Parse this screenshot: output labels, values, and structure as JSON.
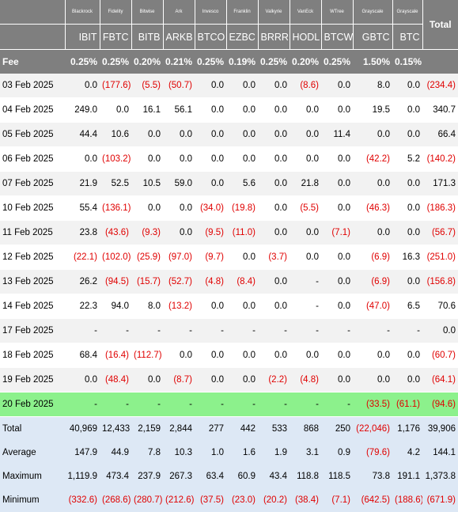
{
  "header": {
    "issuers": [
      "Blackrock",
      "Fidelity",
      "Bitwise",
      "Ark",
      "Invesco",
      "Franklin",
      "Valkyrie",
      "VanEck",
      "WTree",
      "Grayscale",
      "Grayscale"
    ],
    "tickers": [
      "IBIT",
      "FBTC",
      "BITB",
      "ARKB",
      "BTCO",
      "EZBC",
      "BRRR",
      "HODL",
      "BTCW",
      "GBTC",
      "BTC"
    ],
    "total_label": "Total",
    "fee_label": "Fee",
    "fees": [
      "0.25%",
      "0.25%",
      "0.20%",
      "0.21%",
      "0.25%",
      "0.19%",
      "0.25%",
      "0.20%",
      "0.25%",
      "1.50%",
      "0.15%"
    ]
  },
  "rows": [
    {
      "date": "03 Feb 2025",
      "values": [
        "0.0",
        "(177.6)",
        "(5.5)",
        "(50.7)",
        "0.0",
        "0.0",
        "0.0",
        "(8.6)",
        "0.0",
        "8.0",
        "0.0"
      ],
      "total": "(234.4)"
    },
    {
      "date": "04 Feb 2025",
      "values": [
        "249.0",
        "0.0",
        "16.1",
        "56.1",
        "0.0",
        "0.0",
        "0.0",
        "0.0",
        "0.0",
        "19.5",
        "0.0"
      ],
      "total": "340.7"
    },
    {
      "date": "05 Feb 2025",
      "values": [
        "44.4",
        "10.6",
        "0.0",
        "0.0",
        "0.0",
        "0.0",
        "0.0",
        "0.0",
        "11.4",
        "0.0",
        "0.0"
      ],
      "total": "66.4"
    },
    {
      "date": "06 Feb 2025",
      "values": [
        "0.0",
        "(103.2)",
        "0.0",
        "0.0",
        "0.0",
        "0.0",
        "0.0",
        "0.0",
        "0.0",
        "(42.2)",
        "5.2"
      ],
      "total": "(140.2)"
    },
    {
      "date": "07 Feb 2025",
      "values": [
        "21.9",
        "52.5",
        "10.5",
        "59.0",
        "0.0",
        "5.6",
        "0.0",
        "21.8",
        "0.0",
        "0.0",
        "0.0"
      ],
      "total": "171.3"
    },
    {
      "date": "10 Feb 2025",
      "values": [
        "55.4",
        "(136.1)",
        "0.0",
        "0.0",
        "(34.0)",
        "(19.8)",
        "0.0",
        "(5.5)",
        "0.0",
        "(46.3)",
        "0.0"
      ],
      "total": "(186.3)"
    },
    {
      "date": "11 Feb 2025",
      "values": [
        "23.8",
        "(43.6)",
        "(9.3)",
        "0.0",
        "(9.5)",
        "(11.0)",
        "0.0",
        "0.0",
        "(7.1)",
        "0.0",
        "0.0"
      ],
      "total": "(56.7)"
    },
    {
      "date": "12 Feb 2025",
      "values": [
        "(22.1)",
        "(102.0)",
        "(25.9)",
        "(97.0)",
        "(9.7)",
        "0.0",
        "(3.7)",
        "0.0",
        "0.0",
        "(6.9)",
        "16.3"
      ],
      "total": "(251.0)"
    },
    {
      "date": "13 Feb 2025",
      "values": [
        "26.2",
        "(94.5)",
        "(15.7)",
        "(52.7)",
        "(4.8)",
        "(8.4)",
        "0.0",
        "-",
        "0.0",
        "(6.9)",
        "0.0"
      ],
      "total": "(156.8)"
    },
    {
      "date": "14 Feb 2025",
      "values": [
        "22.3",
        "94.0",
        "8.0",
        "(13.2)",
        "0.0",
        "0.0",
        "0.0",
        "-",
        "0.0",
        "(47.0)",
        "6.5"
      ],
      "total": "70.6"
    },
    {
      "date": "17 Feb 2025",
      "values": [
        "-",
        "-",
        "-",
        "-",
        "-",
        "-",
        "-",
        "-",
        "-",
        "-",
        "-"
      ],
      "total": "0.0"
    },
    {
      "date": "18 Feb 2025",
      "values": [
        "68.4",
        "(16.4)",
        "(112.7)",
        "0.0",
        "0.0",
        "0.0",
        "0.0",
        "0.0",
        "0.0",
        "0.0",
        "0.0"
      ],
      "total": "(60.7)"
    },
    {
      "date": "19 Feb 2025",
      "values": [
        "0.0",
        "(48.4)",
        "0.0",
        "(8.7)",
        "0.0",
        "0.0",
        "(2.2)",
        "(4.8)",
        "0.0",
        "0.0",
        "0.0"
      ],
      "total": "(64.1)"
    },
    {
      "date": "20 Feb 2025",
      "values": [
        "-",
        "-",
        "-",
        "-",
        "-",
        "-",
        "-",
        "-",
        "-",
        "(33.5)",
        "(61.1)"
      ],
      "total": "(94.6)",
      "highlight": true
    }
  ],
  "summary": [
    {
      "label": "Total",
      "values": [
        "40,969",
        "12,433",
        "2,159",
        "2,844",
        "277",
        "442",
        "533",
        "868",
        "250",
        "(22,046)",
        "1,176"
      ],
      "total": "39,906"
    },
    {
      "label": "Average",
      "values": [
        "147.9",
        "44.9",
        "7.8",
        "10.3",
        "1.0",
        "1.6",
        "1.9",
        "3.1",
        "0.9",
        "(79.6)",
        "4.2"
      ],
      "total": "144.1"
    },
    {
      "label": "Maximum",
      "values": [
        "1,119.9",
        "473.4",
        "237.9",
        "267.3",
        "63.4",
        "60.9",
        "43.4",
        "118.8",
        "118.5",
        "73.8",
        "191.1"
      ],
      "total": "1,373.8"
    },
    {
      "label": "Minimum",
      "values": [
        "(332.6)",
        "(268.6)",
        "(280.7)",
        "(212.6)",
        "(37.5)",
        "(23.0)",
        "(20.2)",
        "(38.4)",
        "(7.1)",
        "(642.5)",
        "(188.6)"
      ],
      "total": "(671.9)"
    }
  ]
}
